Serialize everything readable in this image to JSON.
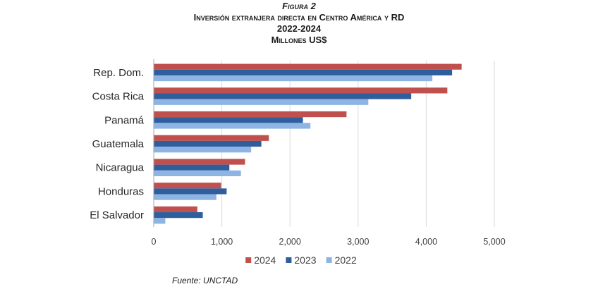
{
  "figure": {
    "label": "Figura 2",
    "title": "Inversión extranjera directa en Centro América y RD",
    "period": "2022-2024",
    "units": "Millones US$"
  },
  "chart_data": {
    "type": "bar",
    "orientation": "horizontal",
    "categories": [
      "Rep. Dom.",
      "Costa Rica",
      "Panamá",
      "Guatemala",
      "Nicaragua",
      "Honduras",
      "El Salvador"
    ],
    "series": [
      {
        "name": "2024",
        "color": "#C0504D",
        "values": [
          4520,
          4310,
          2830,
          1690,
          1340,
          990,
          640
        ]
      },
      {
        "name": "2023",
        "color": "#2E5E9C",
        "values": [
          4380,
          3780,
          2190,
          1580,
          1110,
          1070,
          720
        ]
      },
      {
        "name": "2022",
        "color": "#8EB4E3",
        "values": [
          4090,
          3150,
          2300,
          1430,
          1280,
          920,
          170
        ]
      }
    ],
    "xlim": [
      0,
      5000
    ],
    "x_ticks": [
      0,
      1000,
      2000,
      3000,
      4000,
      5000
    ],
    "x_tick_labels": [
      "0",
      "1,000",
      "2,000",
      "3,000",
      "4,000",
      "5,000"
    ],
    "grid": "vertical",
    "legend_position": "bottom"
  },
  "source": "Fuente: UNCTAD"
}
